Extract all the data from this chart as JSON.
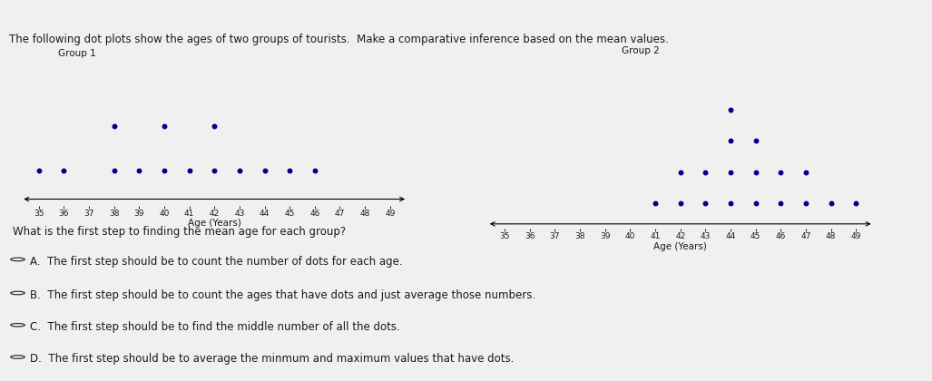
{
  "title": "The following dot plots show the ages of two groups of tourists.  Make a comparative inference based on the mean values.",
  "group1_label": "Group 1",
  "group2_label": "Group 2",
  "xlabel": "Age (Years)",
  "x_min": 35,
  "x_max": 49,
  "dot_color": "#00008B",
  "dot_size": 18,
  "group1_data": {
    "35": 1,
    "36": 1,
    "37": 0,
    "38": 2,
    "39": 1,
    "40": 2,
    "41": 1,
    "42": 2,
    "43": 1,
    "44": 1,
    "45": 1,
    "46": 1,
    "47": 0,
    "48": 0,
    "49": 0
  },
  "group2_data": {
    "35": 0,
    "36": 0,
    "37": 0,
    "38": 0,
    "39": 0,
    "40": 0,
    "41": 1,
    "42": 2,
    "43": 2,
    "44": 4,
    "45": 3,
    "46": 2,
    "47": 2,
    "48": 1,
    "49": 1
  },
  "question": "What is the first step to finding the mean age for each group?",
  "options": [
    "A.  The first step should be to count the number of dots for each age.",
    "B.  The first step should be to count the ages that have dots and just average those numbers.",
    "C.  The first step should be to find the middle number of all the dots.",
    "D.  The first step should be to average the minmum and maximum values that have dots."
  ],
  "header_bg": "#3a7ebf",
  "bg_color": "#f0f0f0",
  "plot_bg": "#e8e8e8",
  "text_color": "#1a1a1a",
  "font_size_title": 8.5,
  "font_size_label": 7.5,
  "font_size_tick": 6.5,
  "font_size_question": 8.5,
  "font_size_option": 8.5,
  "separator_color": "#888888"
}
